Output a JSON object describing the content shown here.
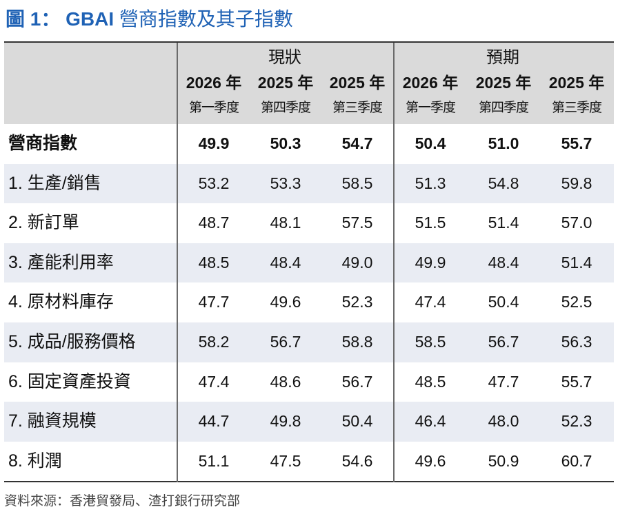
{
  "figure": {
    "title_prefix": "圖 1： GBAI",
    "title_text": "營商指數及其子指數"
  },
  "table": {
    "groups": [
      "現狀",
      "預期"
    ],
    "columns": [
      {
        "year": "2026 年",
        "quarter": "第一季度"
      },
      {
        "year": "2025 年",
        "quarter": "第四季度"
      },
      {
        "year": "2025 年",
        "quarter": "第三季度"
      },
      {
        "year": "2026 年",
        "quarter": "第一季度"
      },
      {
        "year": "2025 年",
        "quarter": "第四季度"
      },
      {
        "year": "2025 年",
        "quarter": "第三季度"
      }
    ],
    "rows": [
      {
        "label": "營商指數",
        "values": [
          "49.9",
          "50.3",
          "54.7",
          "50.4",
          "51.0",
          "55.7"
        ],
        "bold": true
      },
      {
        "label": "1. 生產/銷售",
        "values": [
          "53.2",
          "53.3",
          "58.5",
          "51.3",
          "54.8",
          "59.8"
        ]
      },
      {
        "label": "2. 新訂單",
        "values": [
          "48.7",
          "48.1",
          "57.5",
          "51.5",
          "51.4",
          "57.0"
        ]
      },
      {
        "label": "3. 產能利用率",
        "values": [
          "48.5",
          "48.4",
          "49.0",
          "49.9",
          "48.4",
          "51.4"
        ]
      },
      {
        "label": "4. 原材料庫存",
        "values": [
          "47.7",
          "49.6",
          "52.3",
          "47.4",
          "50.4",
          "52.5"
        ]
      },
      {
        "label": "5. 成品/服務價格",
        "values": [
          "58.2",
          "56.7",
          "58.8",
          "58.5",
          "56.7",
          "56.3"
        ]
      },
      {
        "label": "6. 固定資產投資",
        "values": [
          "47.4",
          "48.6",
          "56.7",
          "48.5",
          "47.7",
          "55.7"
        ]
      },
      {
        "label": "7. 融資規模",
        "values": [
          "44.7",
          "49.8",
          "50.4",
          "46.4",
          "48.0",
          "52.3"
        ]
      },
      {
        "label": "8. 利潤",
        "values": [
          "51.1",
          "47.5",
          "54.6",
          "49.6",
          "50.9",
          "60.7"
        ]
      }
    ]
  },
  "source": "資料來源：香港貿發局、渣打銀行研究部",
  "colors": {
    "title": "#1f62b5",
    "header_bg": "#dadada",
    "alt_row_bg": "#e9ecf3"
  }
}
